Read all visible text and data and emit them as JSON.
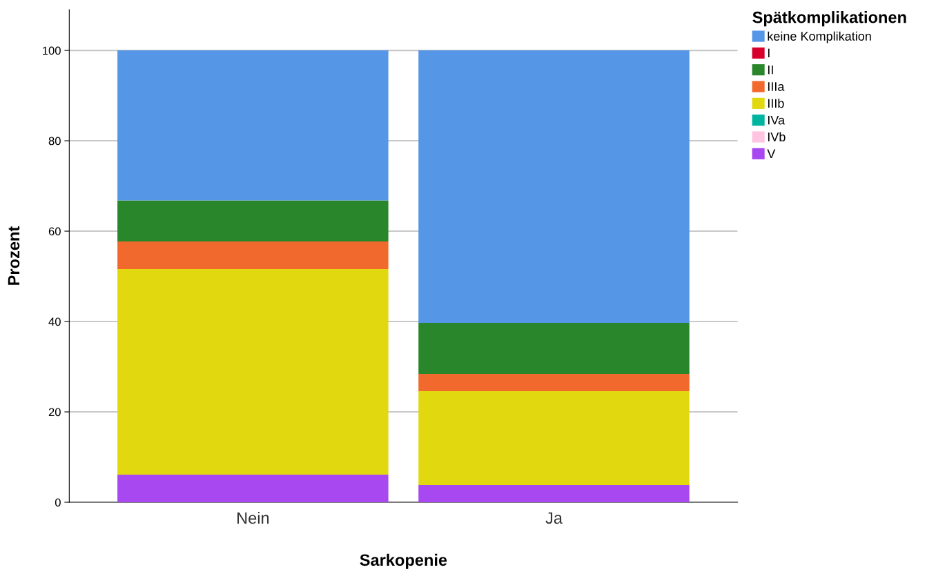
{
  "chart_data": {
    "type": "bar",
    "stacked": true,
    "xlabel": "Sarkopenie",
    "ylabel": "Prozent",
    "legend_title": "Spätkomplikationen",
    "categories": [
      "Nein",
      "Ja"
    ],
    "series": [
      {
        "name": "V",
        "color": "#a848f0",
        "values": [
          6.1,
          3.8
        ]
      },
      {
        "name": "IVb",
        "color": "#ffc4e0",
        "values": [
          0,
          0
        ]
      },
      {
        "name": "IVa",
        "color": "#00b4a0",
        "values": [
          0,
          0
        ]
      },
      {
        "name": "IIIb",
        "color": "#e2d810",
        "values": [
          45.5,
          20.8
        ]
      },
      {
        "name": "IIIa",
        "color": "#f2692d",
        "values": [
          6.1,
          3.8
        ]
      },
      {
        "name": "II",
        "color": "#2a862a",
        "values": [
          9.1,
          11.3
        ]
      },
      {
        "name": "I",
        "color": "#d7002d",
        "values": [
          0,
          0
        ]
      },
      {
        "name": "keine Komplikation",
        "color": "#5596e6",
        "values": [
          33.2,
          60.3
        ]
      }
    ],
    "ylim": [
      0,
      109
    ],
    "yticks": [
      0,
      20,
      40,
      60,
      80,
      100
    ],
    "grid": "y",
    "legend": "top right"
  }
}
